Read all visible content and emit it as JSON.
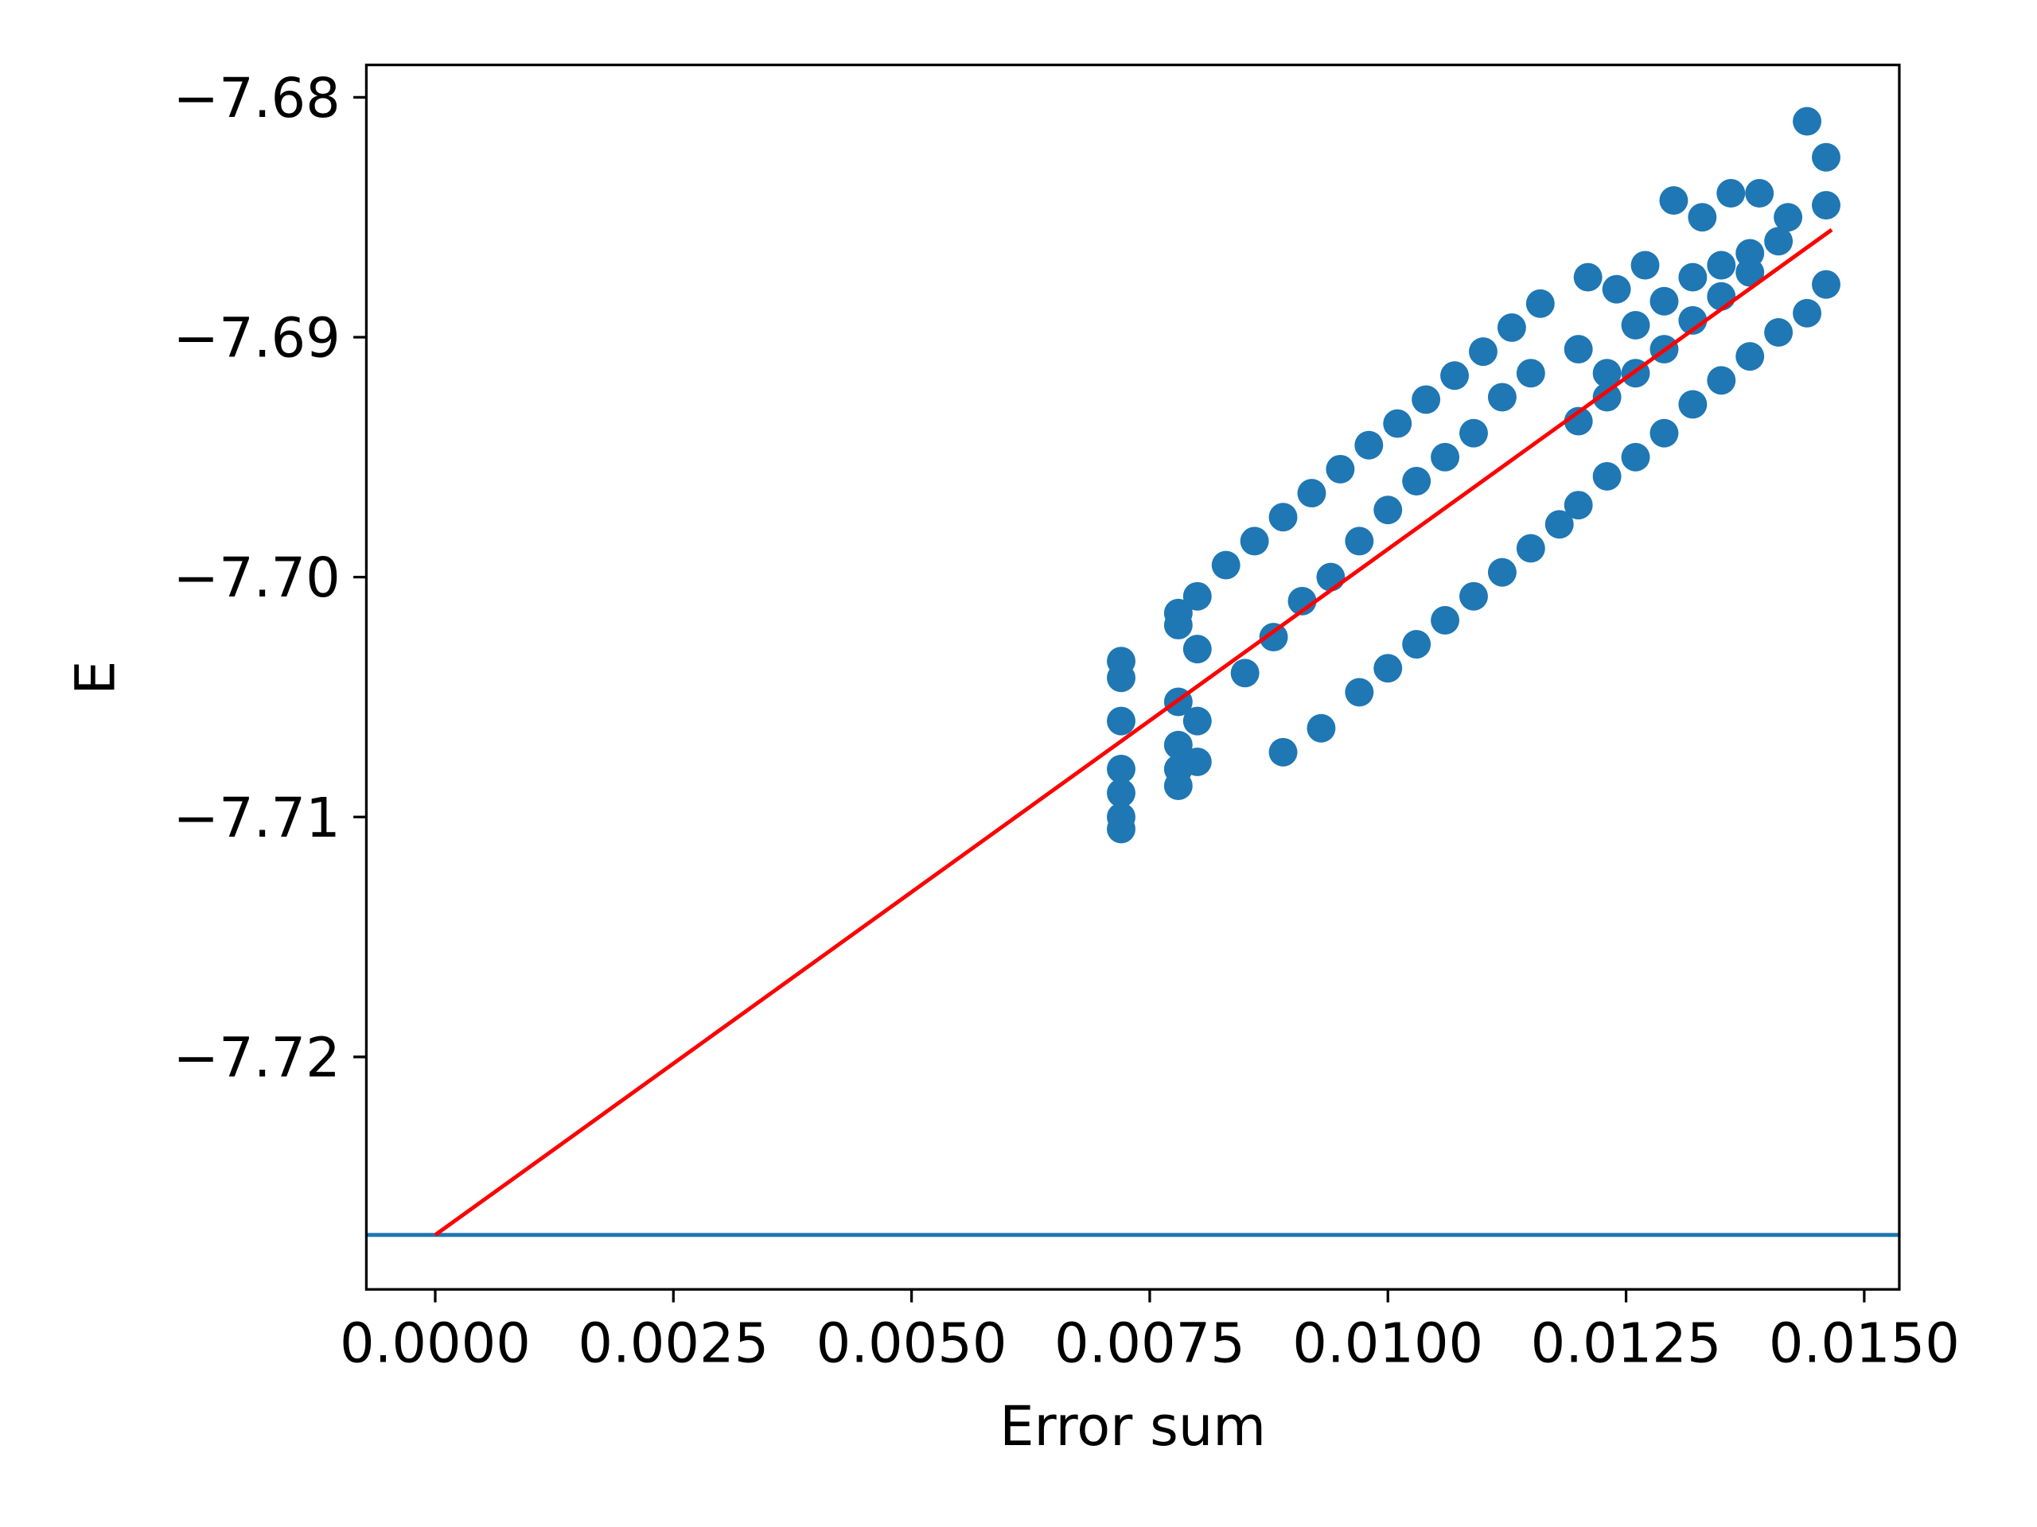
{
  "chart_data": {
    "type": "scatter",
    "xlabel": "Error sum",
    "ylabel": "E",
    "xlim": [
      -0.000723,
      0.015368
    ],
    "ylim": [
      -7.72969,
      -7.67865
    ],
    "xticks": [
      {
        "value": 0,
        "label": "0.0000"
      },
      {
        "value": 0.0025,
        "label": "0.0025"
      },
      {
        "value": 0.005,
        "label": "0.0050"
      },
      {
        "value": 0.0075,
        "label": "0.0075"
      },
      {
        "value": 0.01,
        "label": "0.0100"
      },
      {
        "value": 0.0125,
        "label": "0.0125"
      },
      {
        "value": 0.015,
        "label": "0.0150"
      }
    ],
    "yticks": [
      {
        "value": -7.68,
        "label": "−7.68"
      },
      {
        "value": -7.69,
        "label": "−7.69"
      },
      {
        "value": -7.7,
        "label": "−7.70"
      },
      {
        "value": -7.71,
        "label": "−7.71"
      },
      {
        "value": -7.72,
        "label": "−7.72"
      }
    ],
    "points": {
      "color": "#1f77b4",
      "x": [
        0.0072,
        0.0072,
        0.0072,
        0.0072,
        0.0072,
        0.0072,
        0.0072,
        0.0078,
        0.0078,
        0.0078,
        0.0078,
        0.0078,
        0.0078,
        0.008,
        0.008,
        0.008,
        0.008,
        0.0083,
        0.0086,
        0.0089,
        0.0092,
        0.0095,
        0.0098,
        0.0101,
        0.0104,
        0.0107,
        0.011,
        0.0113,
        0.0116,
        0.0089,
        0.0093,
        0.0097,
        0.01,
        0.0103,
        0.0106,
        0.0109,
        0.0112,
        0.0115,
        0.0118,
        0.0085,
        0.0088,
        0.0091,
        0.0094,
        0.0097,
        0.01,
        0.0103,
        0.0106,
        0.0109,
        0.0112,
        0.0115,
        0.0121,
        0.0124,
        0.0127,
        0.013,
        0.0133,
        0.0136,
        0.0139,
        0.0142,
        0.0144,
        0.0146,
        0.012,
        0.0123,
        0.0126,
        0.0129,
        0.0132,
        0.0135,
        0.0138,
        0.0141,
        0.0146,
        0.012,
        0.0123,
        0.0126,
        0.0129,
        0.0132,
        0.0135,
        0.0138,
        0.0141,
        0.0144,
        0.0146,
        0.012,
        0.0123,
        0.0126,
        0.0129,
        0.0132,
        0.0135,
        0.0138
      ],
      "y": [
        -7.7035,
        -7.7042,
        -7.706,
        -7.708,
        -7.709,
        -7.71,
        -7.7105,
        -7.7015,
        -7.702,
        -7.7052,
        -7.707,
        -7.708,
        -7.7087,
        -7.7008,
        -7.703,
        -7.706,
        -7.7077,
        -7.6995,
        -7.6985,
        -7.6975,
        -7.6965,
        -7.6955,
        -7.6945,
        -7.6936,
        -7.6926,
        -7.6916,
        -7.6906,
        -7.6896,
        -7.6886,
        -7.7073,
        -7.7063,
        -7.7048,
        -7.7038,
        -7.7028,
        -7.7018,
        -7.7008,
        -7.6998,
        -7.6988,
        -7.6978,
        -7.704,
        -7.7025,
        -7.701,
        -7.7,
        -7.6985,
        -7.6972,
        -7.696,
        -7.695,
        -7.694,
        -7.6925,
        -7.6915,
        -7.6875,
        -7.688,
        -7.687,
        -7.6843,
        -7.685,
        -7.684,
        -7.684,
        -7.685,
        -7.681,
        -7.6825,
        -7.6905,
        -7.6915,
        -7.6895,
        -7.6885,
        -7.6875,
        -7.687,
        -7.6865,
        -7.686,
        -7.6845,
        -7.697,
        -7.6958,
        -7.695,
        -7.694,
        -7.6928,
        -7.6918,
        -7.6908,
        -7.6898,
        -7.689,
        -7.6878,
        -7.6935,
        -7.6925,
        -7.6915,
        -7.6905,
        -7.6893,
        -7.6883,
        -7.6873
      ]
    },
    "fit_line": {
      "color": "#ff0000",
      "x": [
        0,
        0.014659
      ],
      "y": [
        -7.72742,
        -7.68552
      ]
    },
    "hline": {
      "color": "#1f77b4",
      "y": -7.72742
    }
  }
}
